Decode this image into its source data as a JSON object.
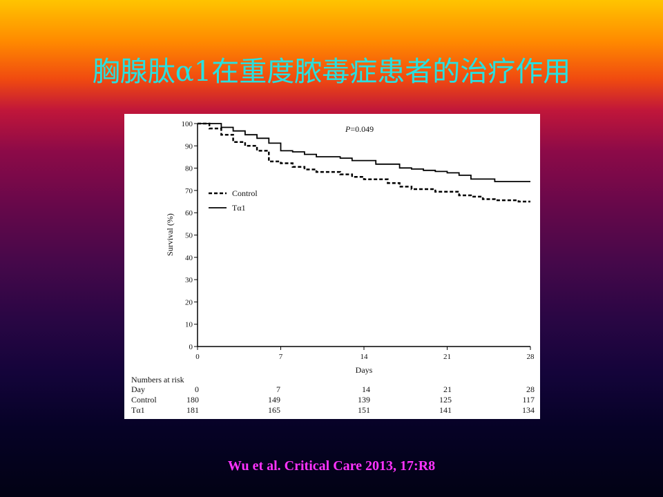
{
  "slide": {
    "title": "胸腺肽α1在重度脓毒症患者的治疗作用",
    "citation": "Wu et al. Critical Care 2013, 17:R8"
  },
  "chart_data": {
    "type": "line",
    "subtype": "kaplan-meier",
    "xlabel": "Days",
    "ylabel": "Survival (%)",
    "xlim": [
      0,
      28
    ],
    "ylim": [
      0,
      100
    ],
    "x_ticks": [
      0,
      7,
      14,
      21,
      28
    ],
    "y_ticks": [
      0,
      10,
      20,
      30,
      40,
      50,
      60,
      70,
      80,
      90,
      100
    ],
    "annotation": "P=0.049",
    "annotation_p": "P",
    "annotation_rest": "=0.049",
    "grid": false,
    "legend_position": "left",
    "series": [
      {
        "name": "Control",
        "style": "dashed",
        "points": [
          [
            0,
            100
          ],
          [
            1,
            100
          ],
          [
            1,
            97.8
          ],
          [
            2,
            97.8
          ],
          [
            2,
            95
          ],
          [
            3,
            95
          ],
          [
            3,
            91.7
          ],
          [
            4,
            91.7
          ],
          [
            4,
            90
          ],
          [
            5,
            90
          ],
          [
            5,
            87.8
          ],
          [
            6,
            87.8
          ],
          [
            6,
            83
          ],
          [
            7,
            83
          ],
          [
            7,
            82.2
          ],
          [
            8,
            82.2
          ],
          [
            8,
            80.6
          ],
          [
            9,
            80.6
          ],
          [
            9,
            79.4
          ],
          [
            10,
            79.4
          ],
          [
            10,
            78.3
          ],
          [
            12,
            78.3
          ],
          [
            12,
            77.2
          ],
          [
            13,
            77.2
          ],
          [
            13,
            76.1
          ],
          [
            14,
            76.1
          ],
          [
            14,
            75
          ],
          [
            16,
            75
          ],
          [
            16,
            73.3
          ],
          [
            17,
            73.3
          ],
          [
            17,
            71.7
          ],
          [
            18,
            71.7
          ],
          [
            18,
            70.6
          ],
          [
            20,
            70.6
          ],
          [
            20,
            69.4
          ],
          [
            22,
            69.4
          ],
          [
            22,
            67.8
          ],
          [
            23,
            67.8
          ],
          [
            23,
            67.2
          ],
          [
            24,
            67.2
          ],
          [
            24,
            66.1
          ],
          [
            25,
            66.1
          ],
          [
            25,
            65.6
          ],
          [
            27,
            65.6
          ],
          [
            27,
            65
          ],
          [
            28,
            65
          ]
        ]
      },
      {
        "name": "Tα1",
        "style": "solid",
        "points": [
          [
            0,
            100
          ],
          [
            2,
            100
          ],
          [
            2,
            98.3
          ],
          [
            3,
            98.3
          ],
          [
            3,
            96.7
          ],
          [
            4,
            96.7
          ],
          [
            4,
            95
          ],
          [
            5,
            95
          ],
          [
            5,
            93.4
          ],
          [
            6,
            93.4
          ],
          [
            6,
            91.2
          ],
          [
            7,
            91.2
          ],
          [
            7,
            87.8
          ],
          [
            8,
            87.8
          ],
          [
            8,
            87.3
          ],
          [
            9,
            87.3
          ],
          [
            9,
            86.2
          ],
          [
            10,
            86.2
          ],
          [
            10,
            85.1
          ],
          [
            12,
            85.1
          ],
          [
            12,
            84.5
          ],
          [
            13,
            84.5
          ],
          [
            13,
            83.4
          ],
          [
            15,
            83.4
          ],
          [
            15,
            81.8
          ],
          [
            17,
            81.8
          ],
          [
            17,
            80.1
          ],
          [
            18,
            80.1
          ],
          [
            18,
            79.6
          ],
          [
            19,
            79.6
          ],
          [
            19,
            79
          ],
          [
            20,
            79
          ],
          [
            20,
            78.5
          ],
          [
            21,
            78.5
          ],
          [
            21,
            77.9
          ],
          [
            22,
            77.9
          ],
          [
            22,
            76.8
          ],
          [
            23,
            76.8
          ],
          [
            23,
            75.1
          ],
          [
            25,
            75.1
          ],
          [
            25,
            74
          ],
          [
            28,
            74
          ]
        ]
      }
    ],
    "risk_table": {
      "heading": "Numbers at risk",
      "rows": [
        {
          "label": "Day",
          "values": [
            "0",
            "7",
            "14",
            "21",
            "28"
          ]
        },
        {
          "label": "Control",
          "values": [
            "180",
            "149",
            "139",
            "125",
            "117"
          ]
        },
        {
          "label": "Tα1",
          "values": [
            "181",
            "165",
            "151",
            "141",
            "134"
          ]
        }
      ]
    }
  }
}
